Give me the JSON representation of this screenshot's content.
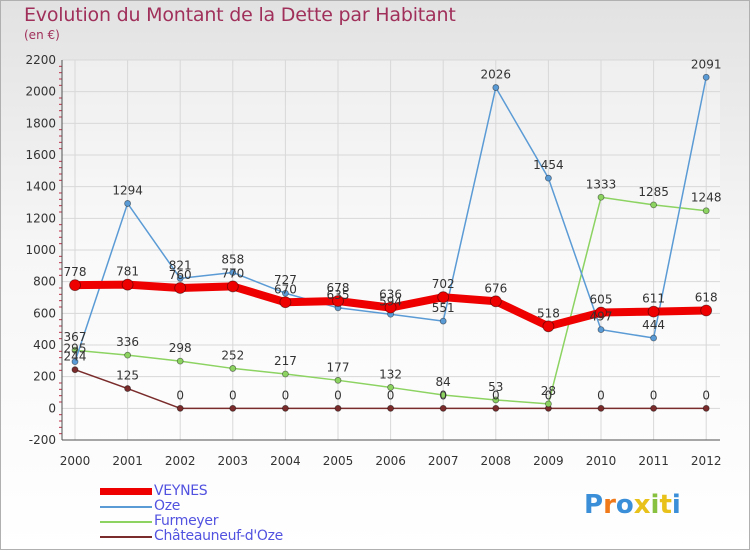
{
  "title": "Evolution du Montant de la Dette par Habitant",
  "subtitle": "(en €)",
  "logo_text": "Proxiti",
  "logo_colors": [
    "#3a8fd8",
    "#f07a1a",
    "#3a8fd8",
    "#e8c21a",
    "#88c040",
    "#e8c21a",
    "#3a8fd8"
  ],
  "colors": {
    "title": "#a0305a",
    "grid": "#d8d8d8",
    "axis": "#505050",
    "tick_minor": "#c0304a",
    "legend_text": "#5252e0"
  },
  "chart_data": {
    "type": "line",
    "title": "Evolution du Montant de la Dette par Habitant",
    "subtitle": "(en €)",
    "xlabel": "",
    "ylabel": "",
    "x": [
      "2000",
      "2001",
      "2002",
      "2003",
      "2004",
      "2005",
      "2006",
      "2007",
      "2008",
      "2009",
      "2010",
      "2011",
      "2012"
    ],
    "ylim": [
      -200,
      2200
    ],
    "yticks": [
      -200,
      0,
      200,
      400,
      600,
      800,
      1000,
      1200,
      1400,
      1600,
      1800,
      2000,
      2200
    ],
    "grid": true,
    "legend_position": "bottom-left",
    "series": [
      {
        "name": "VEYNES",
        "color": "#ee0000",
        "values": [
          778,
          781,
          760,
          770,
          670,
          678,
          636,
          702,
          676,
          518,
          605,
          611,
          618
        ],
        "labels": [
          "778",
          "781",
          "760",
          "770",
          "670",
          "678",
          "636",
          "702",
          "676",
          "518",
          "605",
          "611",
          "618"
        ]
      },
      {
        "name": "Oze",
        "color": "#5b9bd5",
        "values": [
          295,
          1294,
          821,
          858,
          727,
          635,
          594,
          551,
          2026,
          1454,
          497,
          444,
          2091
        ],
        "labels": [
          "295",
          "1294",
          "821",
          "858",
          "727",
          "635",
          "594",
          "551",
          "2026",
          "1454",
          "497",
          "444",
          "2091"
        ]
      },
      {
        "name": "Furmeyer",
        "color": "#8cd362",
        "values": [
          367,
          336,
          298,
          252,
          217,
          177,
          132,
          84,
          53,
          28,
          1333,
          1285,
          1248
        ],
        "labels": [
          "367",
          "336",
          "298",
          "252",
          "217",
          "177",
          "132",
          "84",
          "53",
          "28",
          "1333",
          "1285",
          "1248"
        ]
      },
      {
        "name": "Châteauneuf-d'Oze",
        "color": "#7a2b2b",
        "values": [
          244,
          125,
          0,
          0,
          0,
          0,
          0,
          0,
          0,
          0,
          0,
          0,
          0
        ],
        "labels": [
          "244",
          "125",
          "0",
          "0",
          "0",
          "0",
          "0",
          "0",
          "0",
          "0",
          "0",
          "0",
          "0"
        ]
      }
    ]
  }
}
